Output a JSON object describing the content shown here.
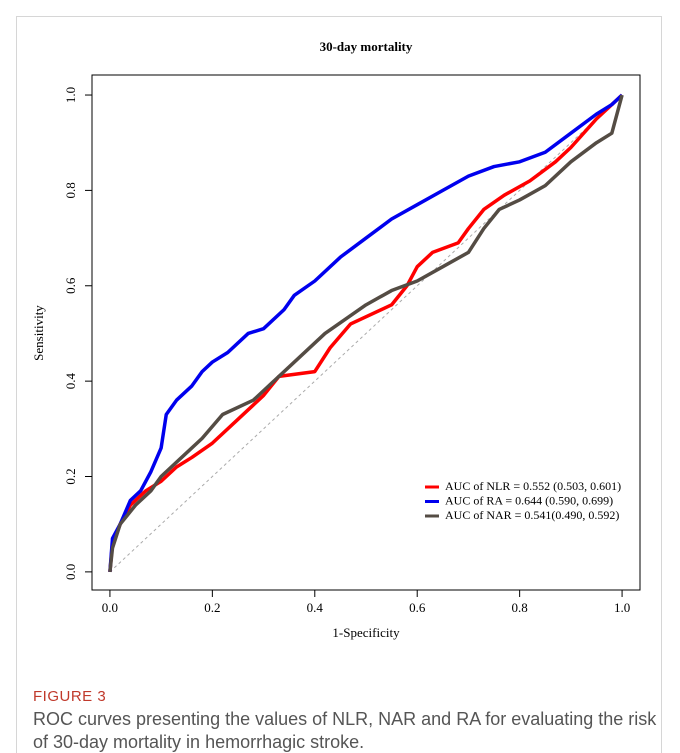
{
  "chart_data": {
    "type": "line",
    "title": "30-day mortality",
    "x_label": "1-Specificity",
    "y_label": "Sensitivity",
    "xlim": [
      -0.035,
      1.035
    ],
    "ylim": [
      -0.038,
      1.042
    ],
    "xticks": [
      {
        "value": 0,
        "label": "0.0"
      },
      0.2,
      0.4,
      0.6,
      0.8,
      {
        "value": 1,
        "label": "1.0"
      }
    ],
    "yticks": [
      {
        "value": 0,
        "label": "0.0"
      },
      0.2,
      0.4,
      0.6,
      0.8,
      {
        "value": 1,
        "label": "1.0"
      }
    ],
    "legend": "bottom-right",
    "series": [
      {
        "name": "AUC of NLR = 0.552 (0.503, 0.601)",
        "color": "#ff0000",
        "x": [
          0,
          0.005,
          0.02,
          0.04,
          0.07,
          0.1,
          0.13,
          0.16,
          0.2,
          0.25,
          0.3,
          0.33,
          0.4,
          0.43,
          0.47,
          0.55,
          0.58,
          0.6,
          0.63,
          0.68,
          0.7,
          0.73,
          0.77,
          0.82,
          0.87,
          0.9,
          0.95,
          0.98,
          1
        ],
        "values": [
          0,
          0.06,
          0.1,
          0.14,
          0.17,
          0.19,
          0.22,
          0.24,
          0.27,
          0.32,
          0.37,
          0.41,
          0.42,
          0.47,
          0.52,
          0.56,
          0.6,
          0.64,
          0.67,
          0.69,
          0.72,
          0.76,
          0.79,
          0.82,
          0.86,
          0.89,
          0.95,
          0.98,
          1
        ]
      },
      {
        "name": "AUC of RA = 0.644 (0.590, 0.699)",
        "color": "#0000ee",
        "x": [
          0,
          0.005,
          0.02,
          0.04,
          0.06,
          0.08,
          0.1,
          0.11,
          0.13,
          0.16,
          0.18,
          0.2,
          0.23,
          0.27,
          0.3,
          0.34,
          0.36,
          0.4,
          0.45,
          0.5,
          0.55,
          0.6,
          0.65,
          0.7,
          0.75,
          0.8,
          0.85,
          0.9,
          0.95,
          0.98,
          1
        ],
        "values": [
          0,
          0.07,
          0.1,
          0.15,
          0.17,
          0.21,
          0.26,
          0.33,
          0.36,
          0.39,
          0.42,
          0.44,
          0.46,
          0.5,
          0.51,
          0.55,
          0.58,
          0.61,
          0.66,
          0.7,
          0.74,
          0.77,
          0.8,
          0.83,
          0.85,
          0.86,
          0.88,
          0.92,
          0.96,
          0.98,
          1
        ]
      },
      {
        "name": "AUC of NAR = 0.541(0.490, 0.592)",
        "color": "#544c44",
        "x": [
          0,
          0.005,
          0.02,
          0.05,
          0.08,
          0.1,
          0.14,
          0.18,
          0.22,
          0.28,
          0.32,
          0.37,
          0.42,
          0.5,
          0.55,
          0.6,
          0.65,
          0.7,
          0.73,
          0.76,
          0.8,
          0.85,
          0.9,
          0.95,
          0.98,
          1
        ],
        "values": [
          0,
          0.05,
          0.1,
          0.14,
          0.17,
          0.2,
          0.24,
          0.28,
          0.33,
          0.36,
          0.4,
          0.45,
          0.5,
          0.56,
          0.59,
          0.61,
          0.64,
          0.67,
          0.72,
          0.76,
          0.78,
          0.81,
          0.86,
          0.9,
          0.92,
          1
        ]
      }
    ]
  },
  "figure_label": "FIGURE 3",
  "caption": "ROC curves presenting the values of NLR, NAR and RA for evaluating the risk of 30-day mortality in hemorrhagic stroke."
}
